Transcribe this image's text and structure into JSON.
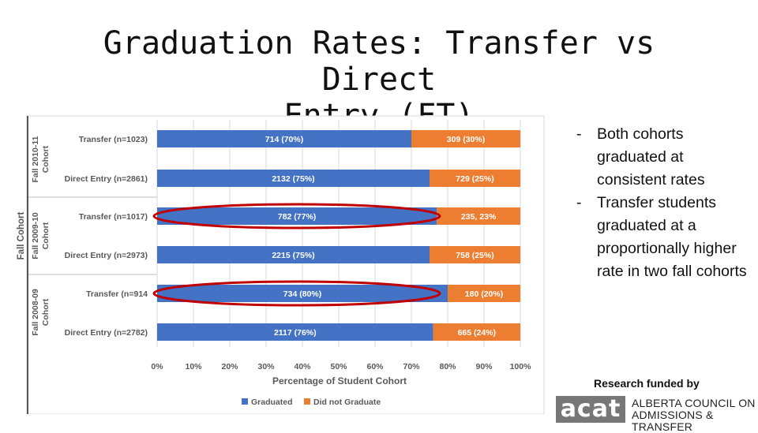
{
  "title": {
    "line1": "Graduation Rates: Transfer vs Direct",
    "line2": "Entry (FT)"
  },
  "bullets": [
    "Both cohorts graduated at consistent rates",
    "Transfer students graduated at a proportionally higher rate in two fall cohorts"
  ],
  "funded_label": "Research funded by",
  "logo": {
    "mark": "acat",
    "lines": [
      "ALBERTA COUNCIL ON",
      "ADMISSIONS & TRANSFER"
    ]
  },
  "colors": {
    "graduated": "#4472C4",
    "not_graduated": "#ED7D31",
    "highlight": "#C00000"
  },
  "chart_data": {
    "type": "bar",
    "orientation": "horizontal",
    "stacked": true,
    "xlabel": "Percentage of Student Cohort",
    "ylabel": "Fall Cohort",
    "xlim": [
      0,
      100
    ],
    "xticks": [
      "0%",
      "10%",
      "20%",
      "30%",
      "40%",
      "50%",
      "60%",
      "70%",
      "80%",
      "90%",
      "100%"
    ],
    "groups": [
      {
        "label": "Fall 2010-11 Cohort",
        "categories": [
          "Transfer (n=1023)",
          "Direct Entry (n=2861)"
        ]
      },
      {
        "label": "Fall 2009-10 Cohort",
        "categories": [
          "Transfer (n=1017)",
          "Direct Entry (n=2973)"
        ]
      },
      {
        "label": "Fall 2008-09 Cohort",
        "categories": [
          "Transfer (n=914",
          "Direct Entry (n=2782)"
        ]
      }
    ],
    "categories": [
      "Transfer (n=1023)",
      "Direct Entry (n=2861)",
      "Transfer (n=1017)",
      "Direct Entry (n=2973)",
      "Transfer (n=914",
      "Direct Entry (n=2782)"
    ],
    "series": [
      {
        "name": "Graduated",
        "values": [
          70,
          75,
          77,
          75,
          80,
          76
        ],
        "labels": [
          "714 (70%)",
          "2132 (75%)",
          "782 (77%)",
          "2215 (75%)",
          "734 (80%)",
          "2117 (76%)"
        ]
      },
      {
        "name": "Did not Graduate",
        "values": [
          30,
          25,
          23,
          25,
          20,
          24
        ],
        "labels": [
          "309 (30%)",
          "729 (25%)",
          "235, 23%",
          "758 (25%)",
          "180 (20%)",
          "665 (24%)"
        ]
      }
    ],
    "highlighted_categories": [
      2,
      4
    ],
    "legend": "bottom",
    "grid": true
  }
}
